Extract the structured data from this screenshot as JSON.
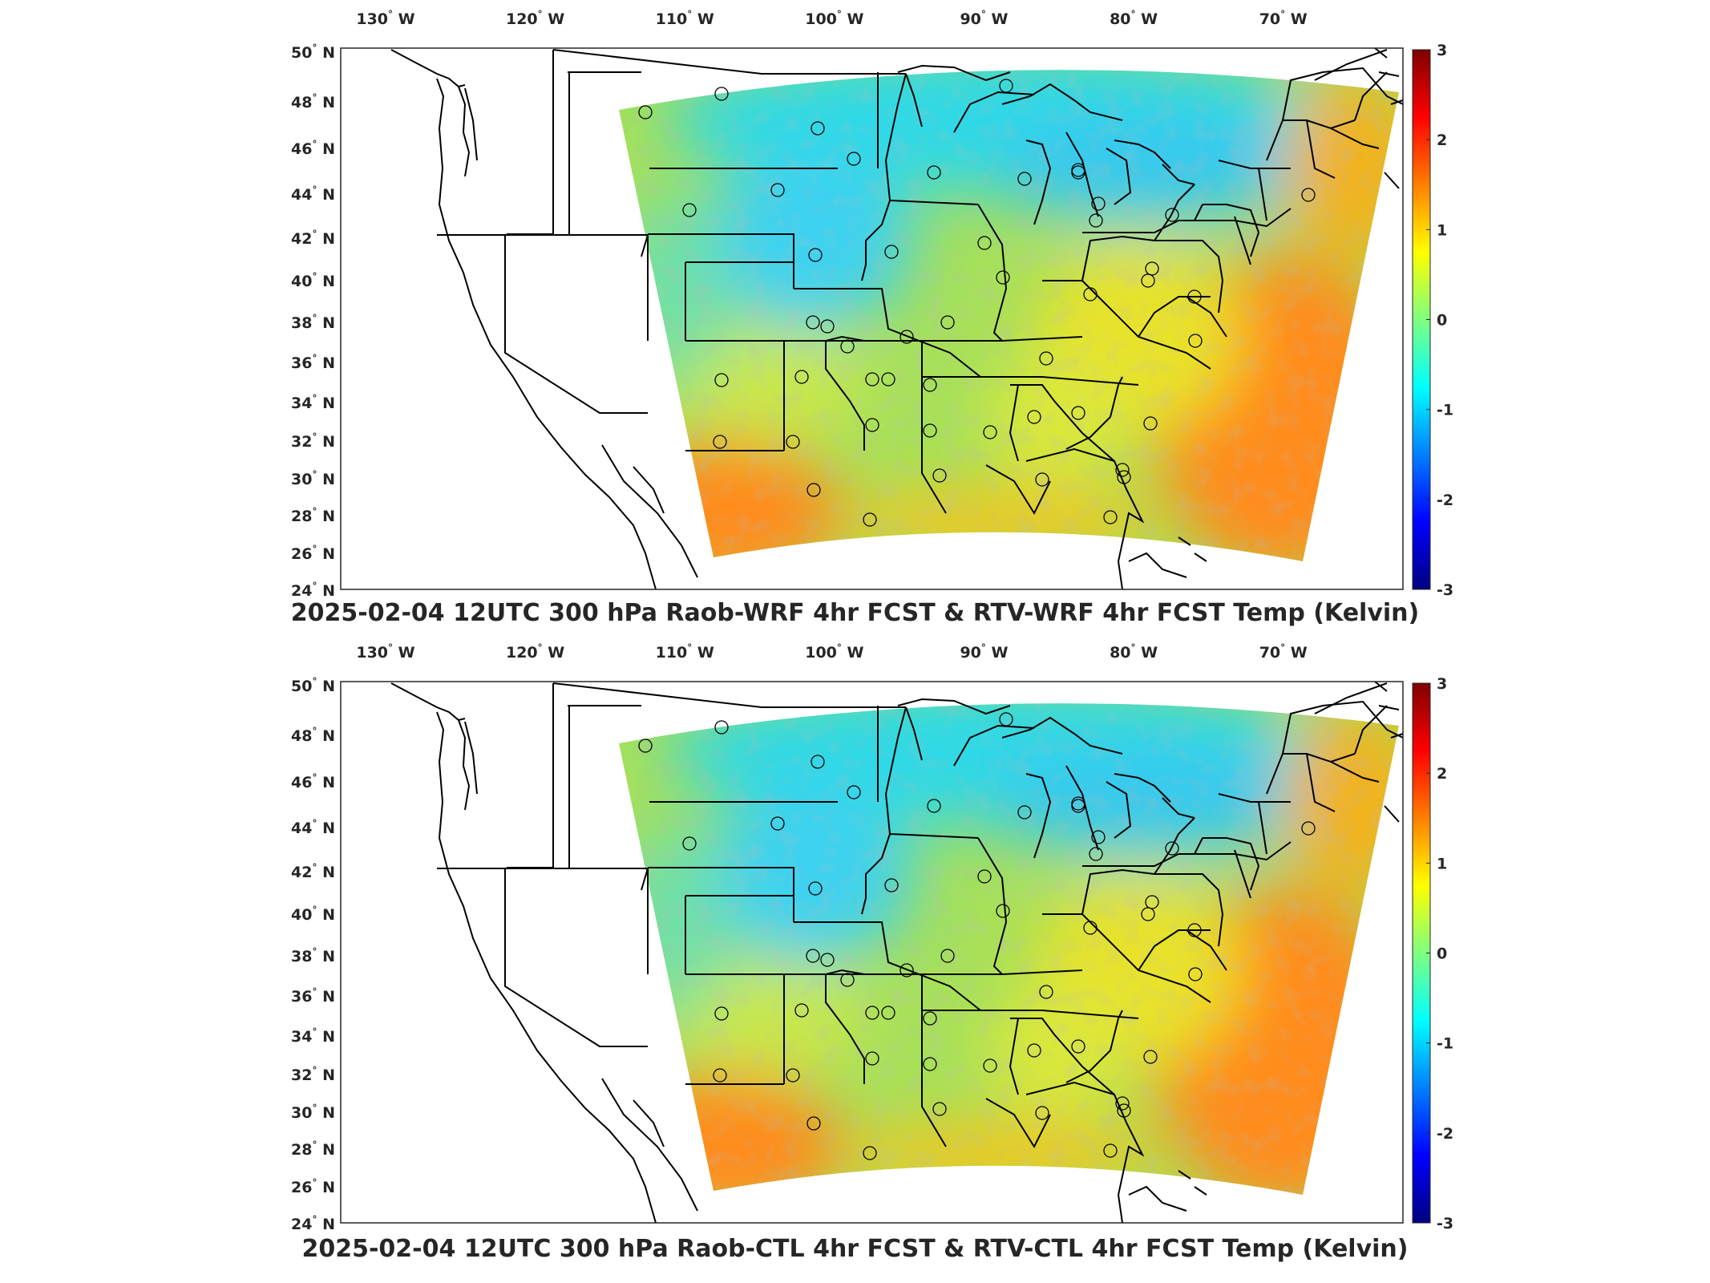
{
  "figure": {
    "panels": [
      {
        "id": "top",
        "title": "2025-02-04 12UTC 300 hPa Raob-WRF 4hr FCST & RTV-WRF 4hr FCST Temp (Kelvin)"
      },
      {
        "id": "bottom",
        "title": "2025-02-04 12UTC 300 hPa Raob-CTL 4hr FCST & RTV-CTL 4hr FCST Temp (Kelvin)"
      }
    ],
    "lon_ticks": [
      {
        "deg": "130",
        "hemi": "W"
      },
      {
        "deg": "120",
        "hemi": "W"
      },
      {
        "deg": "110",
        "hemi": "W"
      },
      {
        "deg": "100",
        "hemi": "W"
      },
      {
        "deg": "90",
        "hemi": "W"
      },
      {
        "deg": "80",
        "hemi": "W"
      },
      {
        "deg": "70",
        "hemi": "W"
      }
    ],
    "lat_ticks": [
      {
        "deg": "50",
        "hemi": "N"
      },
      {
        "deg": "48",
        "hemi": "N"
      },
      {
        "deg": "46",
        "hemi": "N"
      },
      {
        "deg": "44",
        "hemi": "N"
      },
      {
        "deg": "42",
        "hemi": "N"
      },
      {
        "deg": "40",
        "hemi": "N"
      },
      {
        "deg": "38",
        "hemi": "N"
      },
      {
        "deg": "36",
        "hemi": "N"
      },
      {
        "deg": "34",
        "hemi": "N"
      },
      {
        "deg": "32",
        "hemi": "N"
      },
      {
        "deg": "30",
        "hemi": "N"
      },
      {
        "deg": "28",
        "hemi": "N"
      },
      {
        "deg": "26",
        "hemi": "N"
      },
      {
        "deg": "24",
        "hemi": "N"
      }
    ],
    "colorbar": {
      "ticks": [
        "3",
        "2",
        "1",
        "0",
        "-1",
        "-2",
        "-3"
      ],
      "range": [
        -3,
        3
      ],
      "colormap": "jet",
      "stops": [
        "#00007f",
        "#0000ff",
        "#007fff",
        "#00ffff",
        "#7fff7f",
        "#ffff00",
        "#ff7f00",
        "#ff0000",
        "#7f0000"
      ]
    },
    "colors": {
      "frame": "#262626",
      "state_lines": "#000000",
      "ocean_warm": "#ff8c1a",
      "land_green": "#a6e05a",
      "north_cyan": "#2fd9e6",
      "station_outline": "#000000"
    },
    "icons": {
      "station_marker": "circle"
    }
  }
}
